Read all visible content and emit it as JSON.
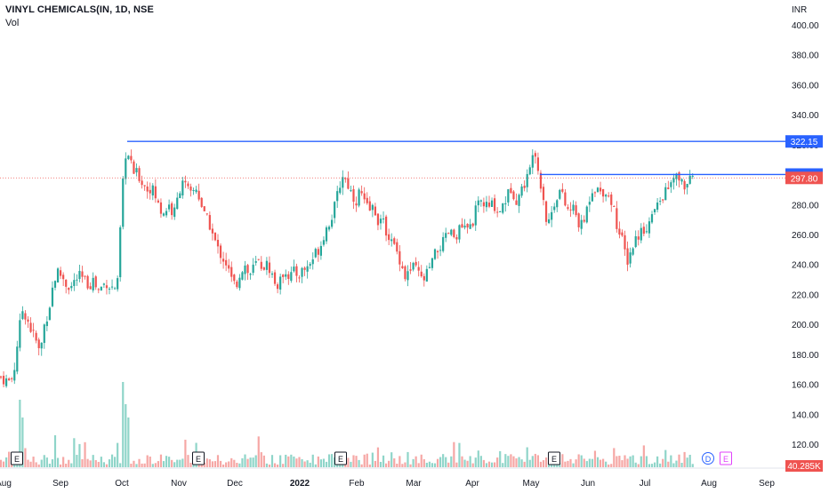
{
  "header": {
    "title": "VINYL CHEMICALS(IN, 1D, NSE",
    "volume_label": "Vol"
  },
  "currency_label": "INR",
  "colors": {
    "up": "#26a69a",
    "down": "#ef5350",
    "vol_up": "#8fd5c9",
    "vol_down": "#f6a7a5",
    "line": "#2962ff",
    "price_line": "#ef5350",
    "earnings_marker": "#131722",
    "dividend_marker": "#2962ff",
    "split_marker": "#e040fb"
  },
  "chart_data": {
    "type": "candlestick",
    "symbol": "VINYL CHEMICALS",
    "interval": "1D",
    "exchange": "NSE",
    "ylim": [
      105,
      410
    ],
    "y_ticks": [
      120,
      140,
      160,
      180,
      200,
      220,
      240,
      260,
      280,
      300,
      320,
      340,
      360,
      380,
      400
    ],
    "y_tick_labels": [
      "120.00",
      "140.00",
      "160.00",
      "180.00",
      "200.00",
      "220.00",
      "240.00",
      "260.00",
      "280.00",
      "300.00",
      "320.00",
      "340.00",
      "360.00",
      "380.00",
      "400.00"
    ],
    "x_labels": [
      "Aug",
      "Sep",
      "Oct",
      "Nov",
      "Dec",
      "2022",
      "Feb",
      "Mar",
      "Apr",
      "May",
      "Jun",
      "Jul",
      "Aug",
      "Sep"
    ],
    "path_points": [
      [
        0,
        165
      ],
      [
        5,
        163
      ],
      [
        10,
        162
      ],
      [
        15,
        165
      ],
      [
        20,
        190
      ],
      [
        25,
        210
      ],
      [
        30,
        205
      ],
      [
        35,
        196
      ],
      [
        40,
        190
      ],
      [
        45,
        180
      ],
      [
        50,
        200
      ],
      [
        55,
        210
      ],
      [
        60,
        228
      ],
      [
        65,
        235
      ],
      [
        70,
        232
      ],
      [
        75,
        226
      ],
      [
        80,
        225
      ],
      [
        85,
        230
      ],
      [
        90,
        232
      ],
      [
        95,
        229
      ],
      [
        100,
        226
      ],
      [
        105,
        230
      ],
      [
        110,
        222
      ],
      [
        115,
        226
      ],
      [
        120,
        228
      ],
      [
        125,
        224
      ],
      [
        130,
        225
      ],
      [
        133,
        228
      ],
      [
        136,
        275
      ],
      [
        139,
        300
      ],
      [
        142,
        318
      ],
      [
        145,
        310
      ],
      [
        150,
        302
      ],
      [
        155,
        300
      ],
      [
        160,
        295
      ],
      [
        165,
        290
      ],
      [
        170,
        292
      ],
      [
        175,
        285
      ],
      [
        180,
        276
      ],
      [
        185,
        275
      ],
      [
        190,
        280
      ],
      [
        195,
        272
      ],
      [
        200,
        285
      ],
      [
        205,
        298
      ],
      [
        210,
        290
      ],
      [
        215,
        286
      ],
      [
        220,
        292
      ],
      [
        225,
        283
      ],
      [
        230,
        272
      ],
      [
        235,
        268
      ],
      [
        240,
        258
      ],
      [
        245,
        250
      ],
      [
        250,
        245
      ],
      [
        255,
        240
      ],
      [
        260,
        230
      ],
      [
        265,
        225
      ],
      [
        270,
        235
      ],
      [
        275,
        240
      ],
      [
        280,
        232
      ],
      [
        285,
        238
      ],
      [
        290,
        242
      ],
      [
        295,
        238
      ],
      [
        300,
        240
      ],
      [
        305,
        235
      ],
      [
        310,
        225
      ],
      [
        315,
        228
      ],
      [
        320,
        238
      ],
      [
        325,
        232
      ],
      [
        330,
        235
      ],
      [
        335,
        233
      ],
      [
        340,
        236
      ],
      [
        345,
        238
      ],
      [
        350,
        242
      ],
      [
        355,
        248
      ],
      [
        360,
        252
      ],
      [
        365,
        262
      ],
      [
        370,
        268
      ],
      [
        375,
        275
      ],
      [
        380,
        288
      ],
      [
        385,
        300
      ],
      [
        390,
        295
      ],
      [
        395,
        288
      ],
      [
        400,
        282
      ],
      [
        405,
        290
      ],
      [
        410,
        280
      ],
      [
        415,
        276
      ],
      [
        420,
        278
      ],
      [
        425,
        270
      ],
      [
        430,
        268
      ],
      [
        435,
        262
      ],
      [
        440,
        255
      ],
      [
        445,
        250
      ],
      [
        450,
        243
      ],
      [
        455,
        232
      ],
      [
        460,
        235
      ],
      [
        465,
        238
      ],
      [
        470,
        235
      ],
      [
        475,
        228
      ],
      [
        480,
        234
      ],
      [
        485,
        240
      ],
      [
        490,
        248
      ],
      [
        495,
        252
      ],
      [
        500,
        256
      ],
      [
        505,
        262
      ],
      [
        510,
        258
      ],
      [
        515,
        262
      ],
      [
        520,
        265
      ],
      [
        525,
        262
      ],
      [
        530,
        266
      ],
      [
        535,
        276
      ],
      [
        540,
        282
      ],
      [
        545,
        280
      ],
      [
        550,
        278
      ],
      [
        555,
        281
      ],
      [
        560,
        274
      ],
      [
        565,
        280
      ],
      [
        570,
        285
      ],
      [
        575,
        292
      ],
      [
        580,
        283
      ],
      [
        585,
        288
      ],
      [
        590,
        295
      ],
      [
        595,
        300
      ],
      [
        600,
        322
      ],
      [
        603,
        312
      ],
      [
        606,
        298
      ],
      [
        610,
        290
      ],
      [
        615,
        265
      ],
      [
        620,
        275
      ],
      [
        625,
        285
      ],
      [
        630,
        290
      ],
      [
        635,
        280
      ],
      [
        640,
        275
      ],
      [
        645,
        278
      ],
      [
        650,
        268
      ],
      [
        655,
        265
      ],
      [
        660,
        278
      ],
      [
        665,
        290
      ],
      [
        670,
        292
      ],
      [
        675,
        288
      ],
      [
        680,
        290
      ],
      [
        685,
        285
      ],
      [
        690,
        278
      ],
      [
        695,
        262
      ],
      [
        700,
        255
      ],
      [
        705,
        242
      ],
      [
        710,
        250
      ],
      [
        715,
        258
      ],
      [
        720,
        262
      ],
      [
        725,
        264
      ],
      [
        730,
        268
      ],
      [
        735,
        275
      ],
      [
        740,
        280
      ],
      [
        745,
        286
      ],
      [
        750,
        290
      ],
      [
        755,
        294
      ],
      [
        760,
        298
      ],
      [
        765,
        296
      ],
      [
        770,
        292
      ],
      [
        775,
        295
      ],
      [
        780,
        297.8
      ]
    ],
    "volume_spikes": [
      [
        20,
        420
      ],
      [
        22,
        450
      ],
      [
        25,
        470
      ],
      [
        60,
        490
      ],
      [
        138,
        430
      ],
      [
        140,
        455
      ],
      [
        142,
        470
      ]
    ],
    "levels": [
      {
        "label": "322.15",
        "value": 322.15
      },
      {
        "label": "300.05",
        "value": 300.05
      }
    ],
    "last_price": {
      "label": "297.80",
      "value": 297.8
    },
    "volume_last_label": "40.285K",
    "event_markers": [
      "E",
      "E",
      "E",
      "E",
      "D",
      "E"
    ]
  }
}
